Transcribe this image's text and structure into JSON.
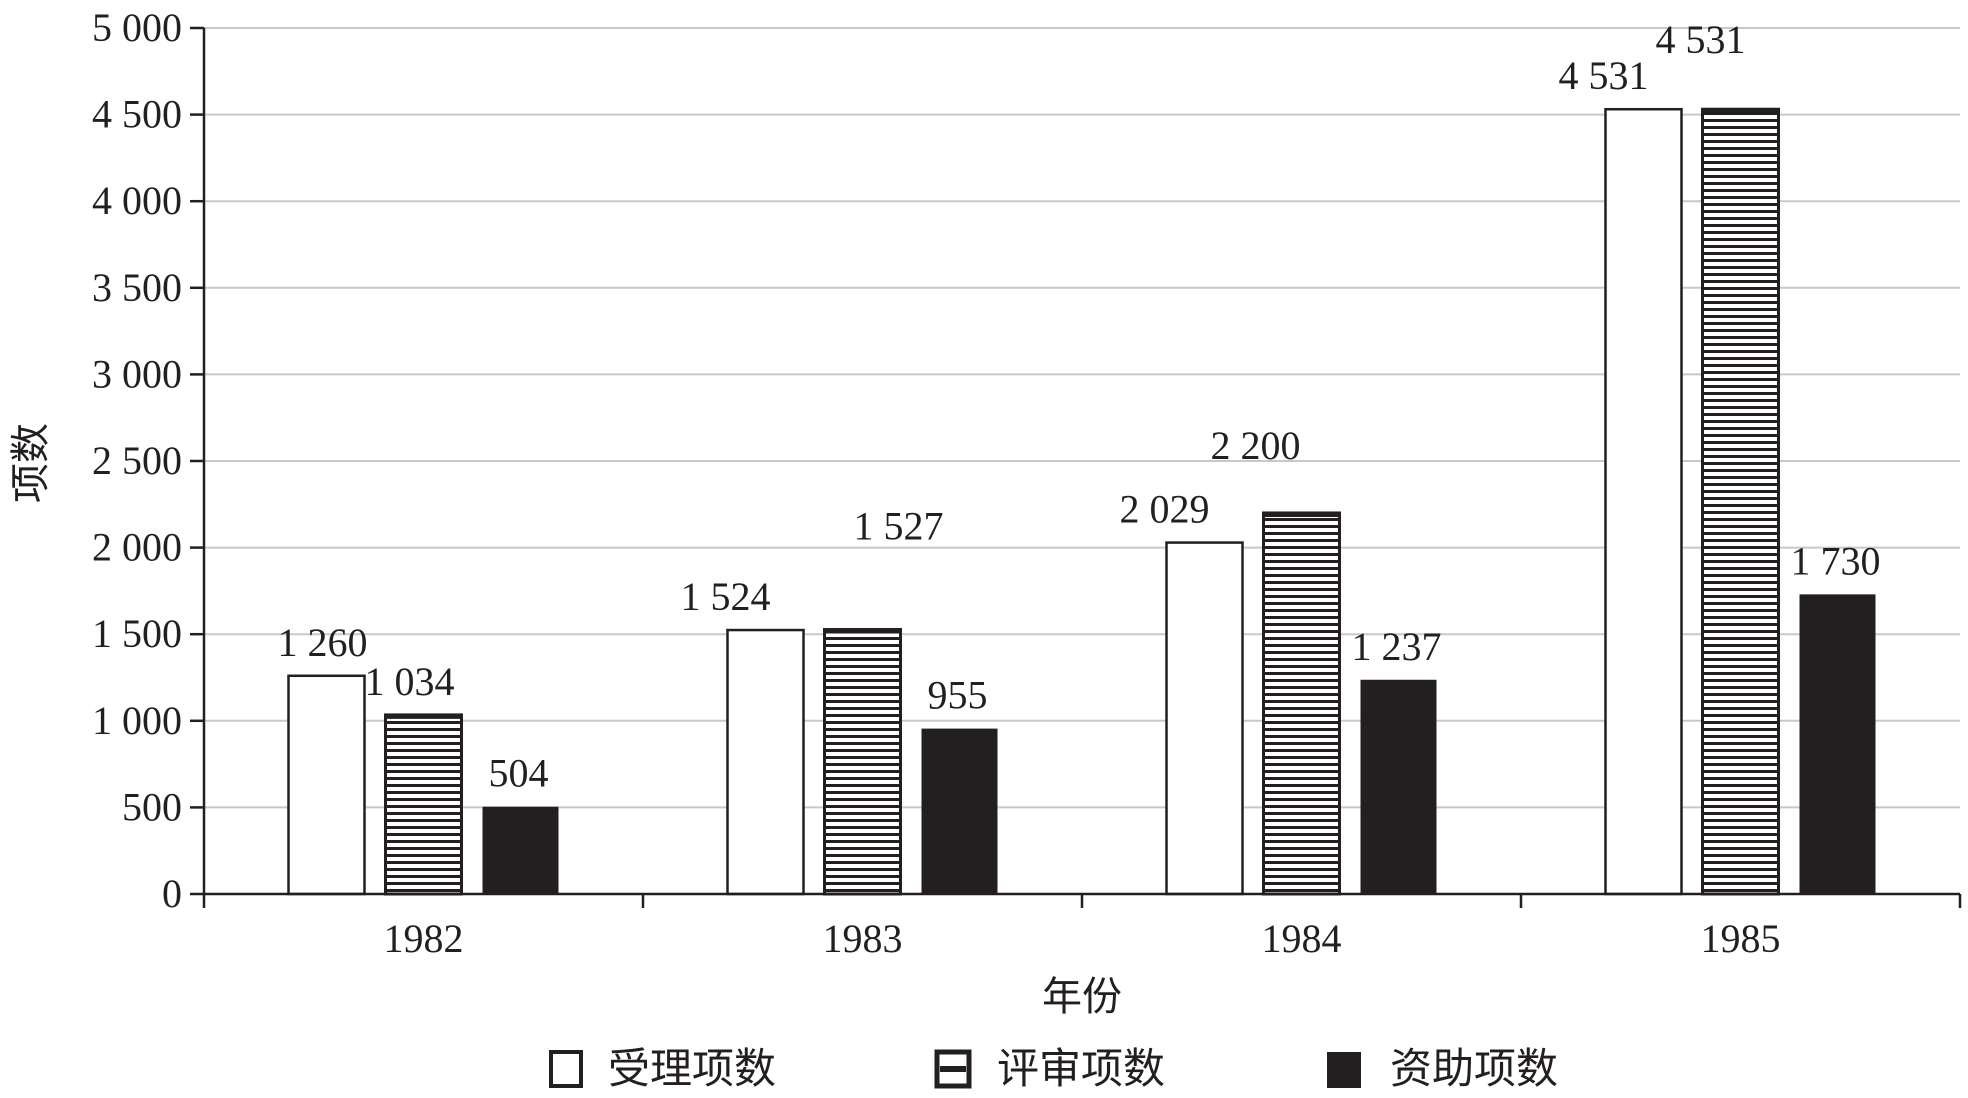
{
  "chart_data": {
    "type": "bar",
    "categories": [
      "1982",
      "1983",
      "1984",
      "1985"
    ],
    "series": [
      {
        "name": "受理项数",
        "values": [
          1260,
          1524,
          2029,
          4531
        ],
        "labels": [
          "1 260",
          "1 524",
          "2 029",
          "4 531"
        ],
        "style": "outline"
      },
      {
        "name": "评审项数",
        "values": [
          1034,
          1527,
          2200,
          4531
        ],
        "labels": [
          "1 034",
          "1 527",
          "2 200",
          "4 531"
        ],
        "style": "hatched"
      },
      {
        "name": "资助项数",
        "values": [
          504,
          955,
          1237,
          1730
        ],
        "labels": [
          "504",
          "955",
          "1 237",
          "1 730"
        ],
        "style": "solid"
      }
    ],
    "ylim": [
      0,
      5000
    ],
    "yticks": [
      0,
      500,
      1000,
      1500,
      2000,
      2500,
      3000,
      3500,
      4000,
      4500,
      5000
    ],
    "ytick_labels": [
      "0",
      "500",
      "1 000",
      "1 500",
      "2 000",
      "2 500",
      "3 000",
      "3 500",
      "4 000",
      "4 500",
      "5 000"
    ],
    "xlabel": "年份",
    "ylabel": "项数",
    "grid": true,
    "legend_position": "bottom",
    "colors": {
      "ink": "#231f20",
      "grid": "#c8c8c8",
      "fill_solid": "#231f20",
      "fill_outline": "#ffffff"
    }
  }
}
